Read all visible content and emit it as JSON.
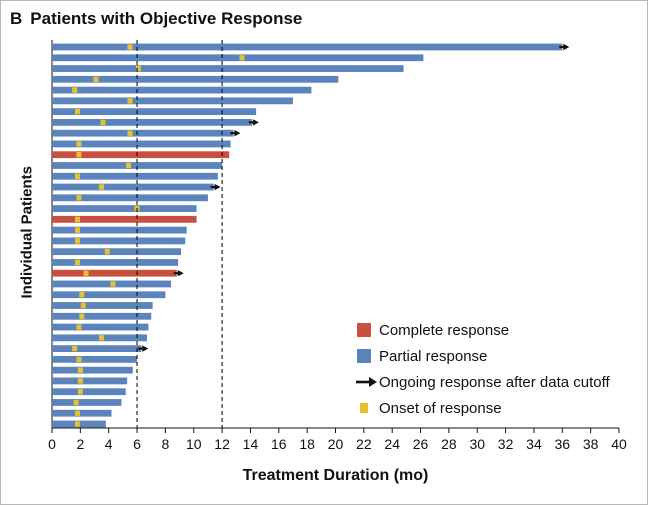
{
  "panel": {
    "letter": "B",
    "title": "Patients with Objective Response"
  },
  "colors": {
    "complete": "#c9503f",
    "partial": "#5b84bd",
    "onset": "#e8c12e",
    "arrow": "#111111"
  },
  "legend": [
    {
      "key": "complete",
      "label": "Complete response"
    },
    {
      "key": "partial",
      "label": "Partial response"
    },
    {
      "key": "arrow",
      "label": "Ongoing response after data cutoff"
    },
    {
      "key": "onset",
      "label": "Onset of response"
    }
  ],
  "chart_data": {
    "type": "bar",
    "orientation": "horizontal",
    "xlabel": "Treatment Duration (mo)",
    "ylabel": "Individual Patients",
    "xlim": [
      0,
      40
    ],
    "xticks": [
      "0",
      "2",
      "4",
      "6",
      "8",
      "10",
      "12",
      "14",
      "16",
      "18",
      "20",
      "22",
      "24",
      "26",
      "28",
      "30",
      "32",
      "34",
      "36",
      "38",
      "40"
    ],
    "reference_lines": [
      6,
      12
    ],
    "bars": [
      {
        "duration": 36.0,
        "response": "partial",
        "onset": 5.5,
        "ongoing": true
      },
      {
        "duration": 26.2,
        "response": "partial",
        "onset": 13.4,
        "ongoing": false
      },
      {
        "duration": 24.8,
        "response": "partial",
        "onset": 6.1,
        "ongoing": false
      },
      {
        "duration": 20.2,
        "response": "partial",
        "onset": 3.1,
        "ongoing": false
      },
      {
        "duration": 18.3,
        "response": "partial",
        "onset": 1.6,
        "ongoing": false
      },
      {
        "duration": 17.0,
        "response": "partial",
        "onset": 5.5,
        "ongoing": false
      },
      {
        "duration": 14.4,
        "response": "partial",
        "onset": 1.8,
        "ongoing": false
      },
      {
        "duration": 14.1,
        "response": "partial",
        "onset": 3.6,
        "ongoing": true
      },
      {
        "duration": 12.8,
        "response": "partial",
        "onset": 5.5,
        "ongoing": true
      },
      {
        "duration": 12.6,
        "response": "partial",
        "onset": 1.9,
        "ongoing": false
      },
      {
        "duration": 12.5,
        "response": "complete",
        "onset": 1.9,
        "ongoing": false
      },
      {
        "duration": 12.0,
        "response": "partial",
        "onset": 5.4,
        "ongoing": false
      },
      {
        "duration": 11.7,
        "response": "partial",
        "onset": 1.8,
        "ongoing": false
      },
      {
        "duration": 11.4,
        "response": "partial",
        "onset": 3.5,
        "ongoing": true
      },
      {
        "duration": 11.0,
        "response": "partial",
        "onset": 1.9,
        "ongoing": false
      },
      {
        "duration": 10.2,
        "response": "partial",
        "onset": 6.0,
        "ongoing": false
      },
      {
        "duration": 10.2,
        "response": "complete",
        "onset": 1.8,
        "ongoing": false
      },
      {
        "duration": 9.5,
        "response": "partial",
        "onset": 1.8,
        "ongoing": false
      },
      {
        "duration": 9.4,
        "response": "partial",
        "onset": 1.8,
        "ongoing": false
      },
      {
        "duration": 9.1,
        "response": "partial",
        "onset": 3.9,
        "ongoing": false
      },
      {
        "duration": 8.9,
        "response": "partial",
        "onset": 1.8,
        "ongoing": false
      },
      {
        "duration": 8.8,
        "response": "complete",
        "onset": 2.4,
        "ongoing": true
      },
      {
        "duration": 8.4,
        "response": "partial",
        "onset": 4.3,
        "ongoing": false
      },
      {
        "duration": 8.0,
        "response": "partial",
        "onset": 2.1,
        "ongoing": false
      },
      {
        "duration": 7.1,
        "response": "partial",
        "onset": 2.2,
        "ongoing": false
      },
      {
        "duration": 7.0,
        "response": "partial",
        "onset": 2.1,
        "ongoing": false
      },
      {
        "duration": 6.8,
        "response": "partial",
        "onset": 1.9,
        "ongoing": false
      },
      {
        "duration": 6.7,
        "response": "partial",
        "onset": 3.5,
        "ongoing": false
      },
      {
        "duration": 6.3,
        "response": "partial",
        "onset": 1.6,
        "ongoing": true
      },
      {
        "duration": 6.0,
        "response": "partial",
        "onset": 1.9,
        "ongoing": false
      },
      {
        "duration": 5.7,
        "response": "partial",
        "onset": 2.0,
        "ongoing": false
      },
      {
        "duration": 5.3,
        "response": "partial",
        "onset": 2.0,
        "ongoing": false
      },
      {
        "duration": 5.2,
        "response": "partial",
        "onset": 2.0,
        "ongoing": false
      },
      {
        "duration": 4.9,
        "response": "partial",
        "onset": 1.7,
        "ongoing": false
      },
      {
        "duration": 4.2,
        "response": "partial",
        "onset": 1.8,
        "ongoing": false
      },
      {
        "duration": 3.8,
        "response": "partial",
        "onset": 1.8,
        "ongoing": false
      }
    ]
  }
}
